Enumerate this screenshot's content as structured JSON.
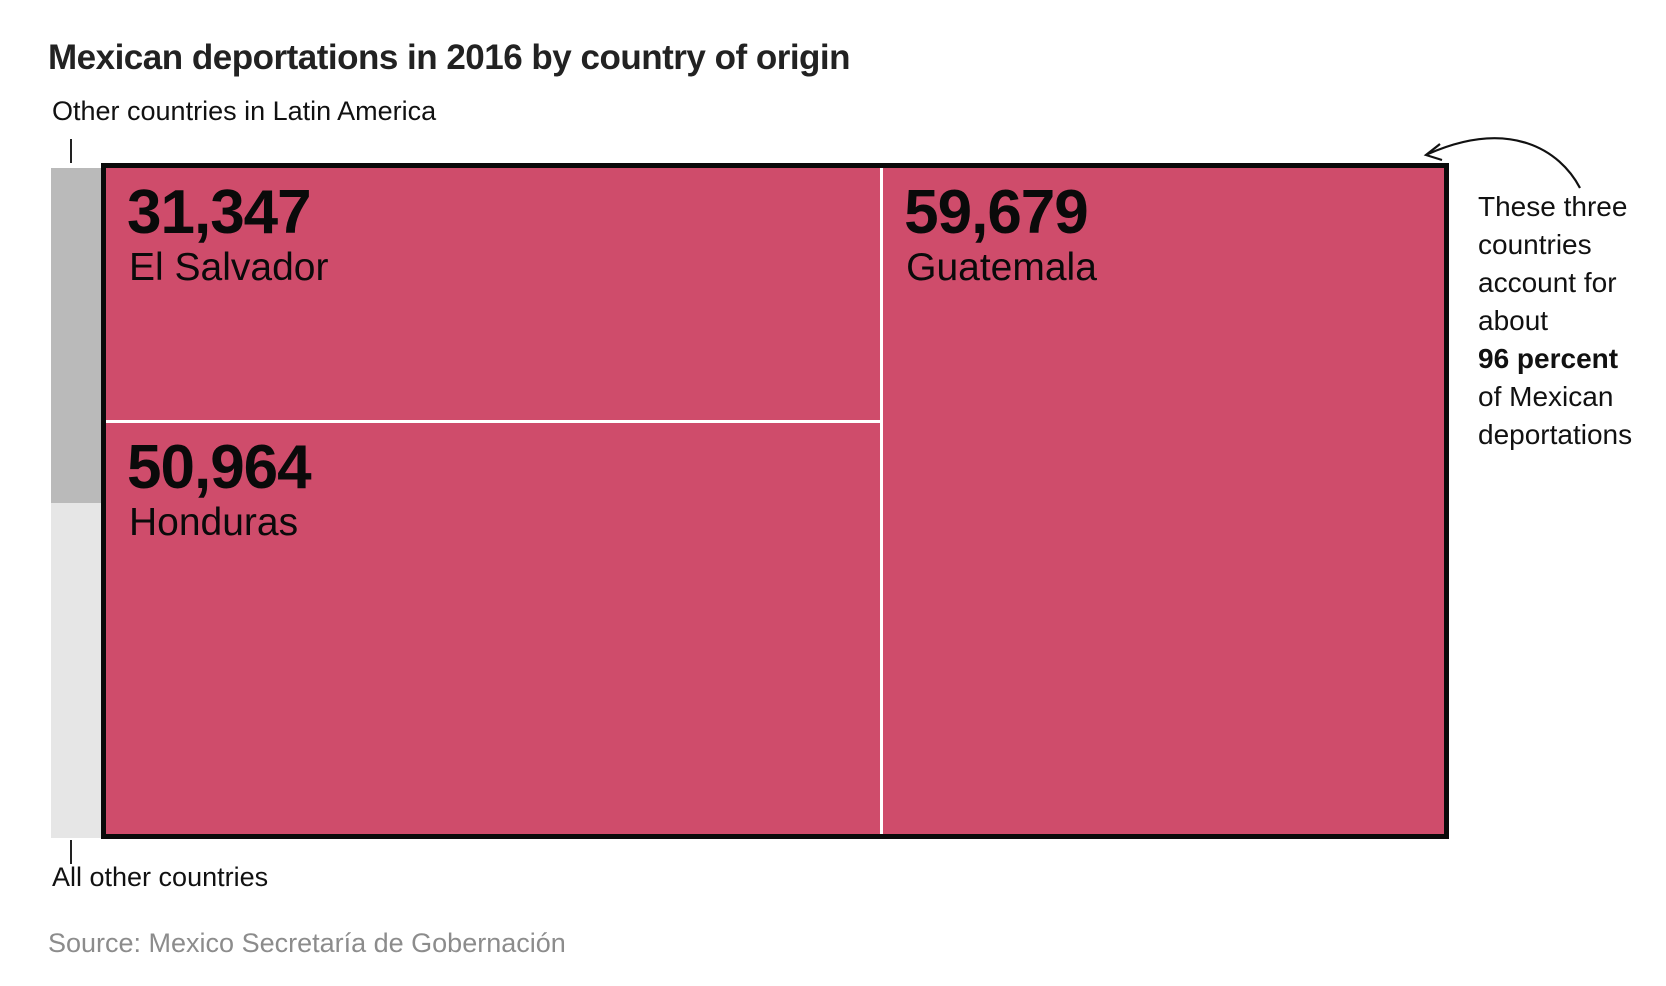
{
  "title": "Mexican deportations in 2016 by country of origin",
  "source": "Source: Mexico Secretaría de Gobernación",
  "annotation": {
    "lines_before": [
      "These three",
      "countries",
      "account for",
      "about"
    ],
    "highlight": "96 percent",
    "lines_after": [
      "of Mexican",
      "deportations"
    ]
  },
  "colors": {
    "cell": "#cf4c6b",
    "other_latin_america": "#bababa",
    "all_other": "#e6e6e6",
    "border": "#0a0a0a"
  },
  "chart_data": {
    "type": "treemap",
    "title": "Mexican deportations in 2016 by country of origin",
    "cells": [
      {
        "name": "El Salvador",
        "value": 31347,
        "label": "31,347"
      },
      {
        "name": "Honduras",
        "value": 50964,
        "label": "50,964"
      },
      {
        "name": "Guatemala",
        "value": 59679,
        "label": "59,679"
      }
    ],
    "remainder": [
      {
        "name": "Other countries in Latin America",
        "share": 0.5
      },
      {
        "name": "All other countries",
        "share": 0.5
      }
    ],
    "combined_share_percent": 96
  }
}
